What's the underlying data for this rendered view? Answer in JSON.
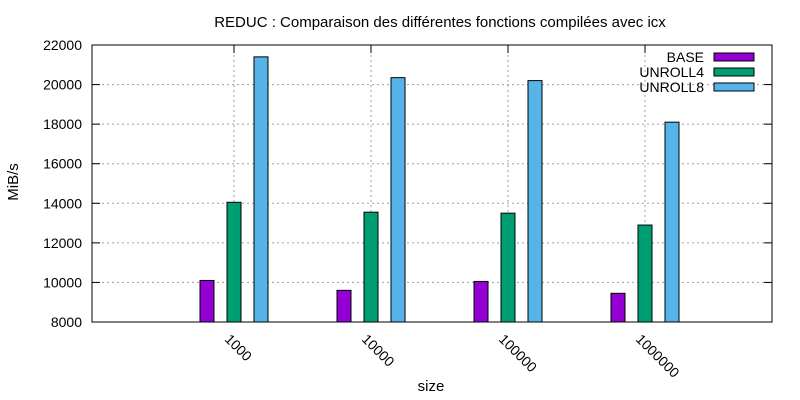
{
  "chart_data": {
    "type": "bar",
    "title": "REDUC : Comparaison des différentes fonctions compilées avec icx",
    "xlabel": "size",
    "ylabel": "MiB/s",
    "categories": [
      "1000",
      "10000",
      "100000",
      "1000000"
    ],
    "ylim": [
      8000,
      22000
    ],
    "yticks": [
      8000,
      10000,
      12000,
      14000,
      16000,
      18000,
      20000,
      22000
    ],
    "grid": true,
    "legend_position": "top-right",
    "series": [
      {
        "name": "BASE",
        "color": "#9400d3",
        "values": [
          10100,
          9600,
          10050,
          9450
        ]
      },
      {
        "name": "UNROLL4",
        "color": "#009e73",
        "values": [
          14050,
          13550,
          13500,
          12900
        ]
      },
      {
        "name": "UNROLL8",
        "color": "#56b4e9",
        "values": [
          21400,
          20350,
          20200,
          18100
        ]
      }
    ]
  }
}
